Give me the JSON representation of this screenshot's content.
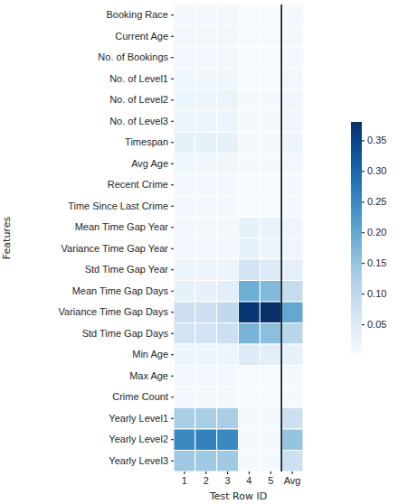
{
  "chart_data": {
    "type": "heatmap",
    "x_label": "Test Row ID",
    "y_label": "Features",
    "columns": [
      "1",
      "2",
      "3",
      "4",
      "5",
      "Avg"
    ],
    "rows": [
      "Booking Race",
      "Current Age",
      "No. of Bookings",
      "No. of Level1",
      "No. of Level2",
      "No. of Level3",
      "Timespan",
      "Avg Age",
      "Recent Crime",
      "Time Since Last Crime",
      "Mean Time Gap Year",
      "Variance Time Gap Year",
      "Std Time Gap Year",
      "Mean Time Gap Days",
      "Variance Time Gap Days",
      "Std Time Gap Days",
      "Min Age",
      "Max Age",
      "Crime Count",
      "Yearly Level1",
      "Yearly Level2",
      "Yearly Level3"
    ],
    "values": [
      [
        0.012,
        0.012,
        0.012,
        0.004,
        0.004,
        0.009
      ],
      [
        0.012,
        0.012,
        0.012,
        0.004,
        0.004,
        0.009
      ],
      [
        0.012,
        0.012,
        0.012,
        0.004,
        0.004,
        0.009
      ],
      [
        0.015,
        0.015,
        0.015,
        0.004,
        0.004,
        0.011
      ],
      [
        0.02,
        0.02,
        0.022,
        0.005,
        0.005,
        0.014
      ],
      [
        0.02,
        0.02,
        0.022,
        0.005,
        0.005,
        0.014
      ],
      [
        0.03,
        0.03,
        0.03,
        0.005,
        0.005,
        0.02
      ],
      [
        0.015,
        0.015,
        0.015,
        0.005,
        0.005,
        0.011
      ],
      [
        0.01,
        0.01,
        0.01,
        0.004,
        0.004,
        0.008
      ],
      [
        0.01,
        0.01,
        0.01,
        0.004,
        0.004,
        0.008
      ],
      [
        0.01,
        0.01,
        0.01,
        0.03,
        0.025,
        0.017
      ],
      [
        0.012,
        0.012,
        0.012,
        0.03,
        0.02,
        0.017
      ],
      [
        0.02,
        0.02,
        0.02,
        0.07,
        0.05,
        0.036
      ],
      [
        0.03,
        0.03,
        0.04,
        0.19,
        0.17,
        0.092
      ],
      [
        0.08,
        0.08,
        0.1,
        0.37,
        0.38,
        0.2
      ],
      [
        0.07,
        0.07,
        0.08,
        0.18,
        0.16,
        0.11
      ],
      [
        0.02,
        0.02,
        0.02,
        0.05,
        0.04,
        0.03
      ],
      [
        0.008,
        0.008,
        0.008,
        0.004,
        0.004,
        0.006
      ],
      [
        0.008,
        0.008,
        0.008,
        0.004,
        0.004,
        0.006
      ],
      [
        0.13,
        0.13,
        0.13,
        0.005,
        0.005,
        0.08
      ],
      [
        0.25,
        0.26,
        0.25,
        0.005,
        0.005,
        0.15
      ],
      [
        0.14,
        0.14,
        0.14,
        0.005,
        0.005,
        0.08
      ]
    ],
    "colorbar": {
      "range": [
        0,
        0.38
      ],
      "ticks": [
        0.05,
        {
          "value": 0.1,
          "label": "0.10"
        },
        0.15,
        {
          "value": 0.2,
          "label": "0.20"
        },
        0.25,
        {
          "value": 0.3,
          "label": "0.30"
        },
        0.35
      ]
    }
  }
}
